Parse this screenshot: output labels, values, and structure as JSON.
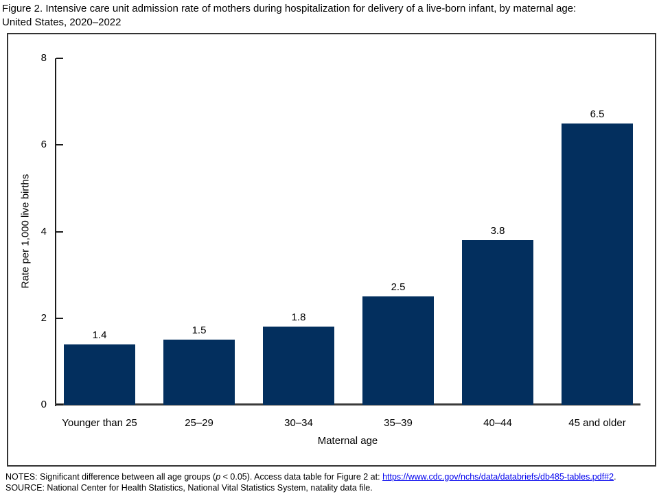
{
  "title": "Figure 2. Intensive care unit admission rate of mothers during hospitalization for delivery of a live-born infant, by maternal age: United States, 2020–2022",
  "title_lines": [
    "Figure 2. Intensive care unit admission rate of mothers during hospitalization for delivery of a live-born infant, by maternal age:",
    "United States, 2020–2022"
  ],
  "chart_data": {
    "type": "bar",
    "categories": [
      "Younger than 25",
      "25–29",
      "30–34",
      "35–39",
      "40–44",
      "45 and older"
    ],
    "values": [
      1.4,
      1.5,
      1.8,
      2.5,
      3.8,
      6.5
    ],
    "value_labels": [
      "1.4",
      "1.5",
      "1.8",
      "2.5",
      "3.8",
      "6.5"
    ],
    "title": "",
    "xlabel": "Maternal age",
    "ylabel": "Rate per 1,000 live births",
    "ylim": [
      0,
      8
    ],
    "yticks": [
      0,
      2,
      4,
      6,
      8
    ],
    "grid": false,
    "legend": "none",
    "bar_color": "#032F5E"
  },
  "notes": {
    "prefix": "NOTES: Significant difference between all age groups (",
    "p_italic": "p",
    "mid": " < 0.05). Access data table for Figure 2 at: ",
    "link_text": "https://www.cdc.gov/nchs/data/databriefs/db485-tables.pdf#2",
    "suffix": ".",
    "source": "SOURCE: National Center for Health Statistics, National Vital Statistics System, natality data file."
  },
  "colors": {
    "bar": "#032F5E",
    "axis": "#1a1a1a",
    "panel_border": "#333333",
    "link": "#0000EE",
    "text": "#000000"
  }
}
